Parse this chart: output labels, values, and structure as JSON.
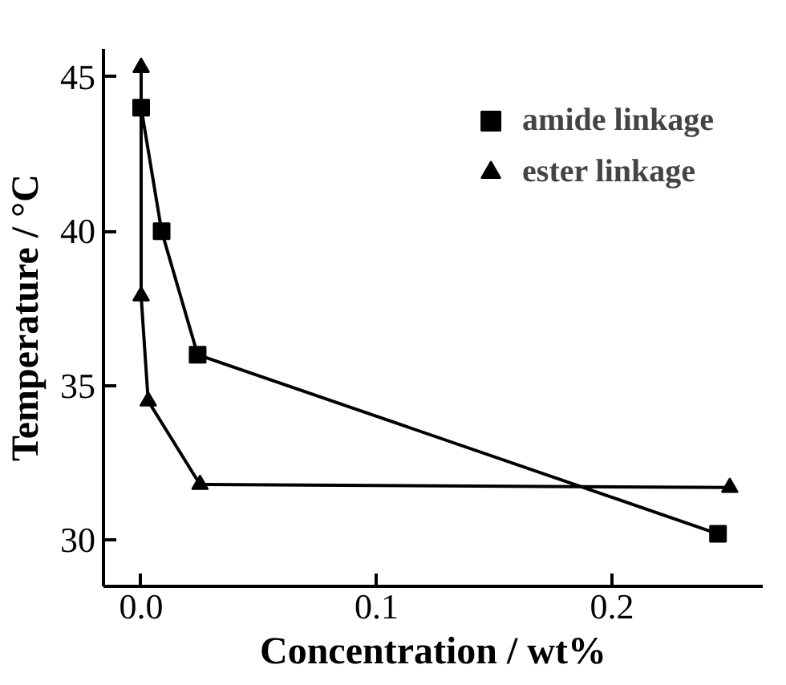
{
  "chart_data": {
    "type": "line",
    "xlabel": "Concentration / wt%",
    "ylabel": "Temperature / °C",
    "xlim": [
      -0.016,
      0.264
    ],
    "ylim": [
      28.5,
      45.9
    ],
    "xticks": [
      {
        "value": 0,
        "label": "0.0"
      },
      0.1,
      0.2
    ],
    "yticks": [
      30,
      35,
      40,
      45
    ],
    "grid": false,
    "legend": "top right",
    "series": [
      {
        "name": "amide linkage",
        "color": "#000000",
        "marker": "square",
        "x": [
          0,
          0.0087,
          0.024,
          0.245
        ],
        "values": [
          44.0,
          40.0,
          36.0,
          30.2
        ]
      },
      {
        "name": "ester linkage",
        "color": "#000000",
        "marker": "triangle",
        "x": [
          0,
          0,
          0.003,
          0.025,
          0.25
        ],
        "values": [
          45.3,
          37.9,
          34.5,
          31.8,
          31.7
        ]
      }
    ]
  }
}
